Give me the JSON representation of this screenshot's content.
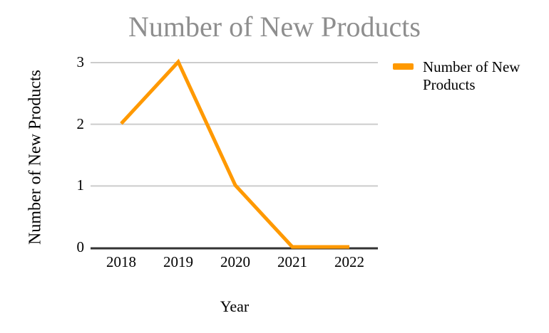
{
  "chart_data": {
    "type": "line",
    "title": "Number of New Products",
    "xlabel": "Year",
    "ylabel": "Number of New Products",
    "categories": [
      "2018",
      "2019",
      "2020",
      "2021",
      "2022"
    ],
    "series": [
      {
        "name": "Number of New Products",
        "values": [
          2,
          3,
          1,
          0,
          0
        ],
        "color": "#FF9900"
      }
    ],
    "ylim": [
      0,
      3
    ],
    "yticks": [
      0,
      1,
      2,
      3
    ],
    "grid": true,
    "legend_position": "right",
    "colors": {
      "title": "#8E8E8E",
      "grid": "#CCCCCC",
      "axis": "#333333",
      "text": "#000000",
      "background": "#FFFFFF"
    }
  }
}
